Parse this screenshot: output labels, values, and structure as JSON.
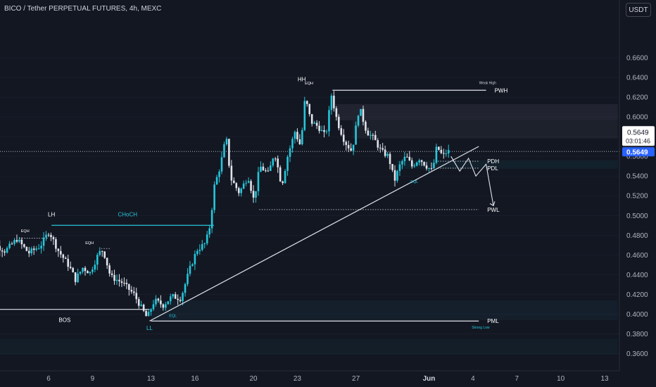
{
  "title": "BICO / Tether PERPETUAL FUTURES, 4h, MEXC",
  "currency_button": "USDT",
  "colors": {
    "background": "#131722",
    "up": "#26c6da",
    "down": "#e0e3eb",
    "line": "#d1d4dc",
    "axis_text": "#b2b5be",
    "price_tag": "#2962ff"
  },
  "price_tag": {
    "price": "0.5649",
    "countdown": "03:01:46"
  },
  "chart_data": {
    "type": "candlestick",
    "y_axis": {
      "range": [
        0.345,
        0.673
      ],
      "ticks": [
        "0.6600",
        "0.6400",
        "0.6200",
        "0.6000",
        "0.5800",
        "0.5600",
        "0.5400",
        "0.5200",
        "0.5000",
        "0.4800",
        "0.4600",
        "0.4400",
        "0.4200",
        "0.4000",
        "0.3800",
        "0.3600"
      ]
    },
    "x_axis": {
      "ticks": [
        {
          "label": "6",
          "day": 6
        },
        {
          "label": "9",
          "day": 9
        },
        {
          "label": "13",
          "day": 13
        },
        {
          "label": "16",
          "day": 16
        },
        {
          "label": "20",
          "day": 20
        },
        {
          "label": "23",
          "day": 23
        },
        {
          "label": "27",
          "day": 27
        },
        {
          "label": "Jun",
          "day": 32
        },
        {
          "label": "4",
          "day": 35
        },
        {
          "label": "7",
          "day": 38
        },
        {
          "label": "10",
          "day": 41
        },
        {
          "label": "13",
          "day": 44
        }
      ]
    },
    "levels": [
      {
        "label": "PWH",
        "price": 0.627,
        "from_day": 25.4,
        "to_day": 35.9,
        "style": "solid",
        "note": "Weak High"
      },
      {
        "label": "PDH",
        "price": 0.555,
        "from_day": 32.6,
        "to_day": 35.4,
        "style": "dotted"
      },
      {
        "label": "PDL",
        "price": 0.548,
        "from_day": 32.6,
        "to_day": 35.4,
        "style": "dotted"
      },
      {
        "label": "PWL",
        "price": 0.506,
        "from_day": 20.4,
        "to_day": 35.4,
        "style": "dotted"
      },
      {
        "label": "PML",
        "price": 0.393,
        "from_day": 13.0,
        "to_day": 35.4,
        "style": "solid",
        "note": "Strong Low"
      }
    ],
    "structure_labels": [
      {
        "text": "HH",
        "day": 23.3,
        "price": 0.636
      },
      {
        "text": "LH",
        "day": 6.2,
        "price": 0.499
      },
      {
        "text": "LL",
        "day": 12.9,
        "price": 0.384
      },
      {
        "text": "BOS",
        "day": 7.1,
        "price": 0.392
      },
      {
        "text": "CHoCH",
        "day": 11.4,
        "price": 0.499
      },
      {
        "text": "EQH",
        "day": 4.4,
        "price": 0.483
      },
      {
        "text": "EQH",
        "day": 8.8,
        "price": 0.471
      },
      {
        "text": "EQH",
        "day": 23.8,
        "price": 0.633
      },
      {
        "text": "EQL",
        "day": 14.5,
        "price": 0.397
      },
      {
        "text": "EQL",
        "day": 31.0,
        "price": 0.533
      }
    ],
    "last_close": 0.5649
  }
}
